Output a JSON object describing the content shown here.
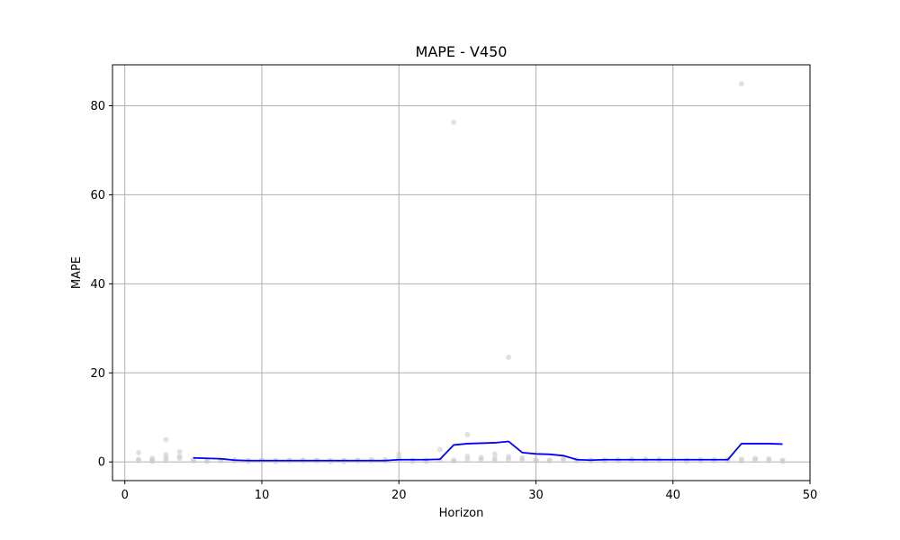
{
  "chart_data": {
    "type": "line",
    "title": "MAPE - V450",
    "xlabel": "Horizon",
    "ylabel": "MAPE",
    "xlim": [
      -0.9,
      50
    ],
    "ylim": [
      -4.2,
      89.2
    ],
    "xticks": [
      0,
      10,
      20,
      30,
      40,
      50
    ],
    "yticks": [
      0,
      20,
      40,
      60,
      80
    ],
    "grid": true,
    "colors": {
      "line": "#0000ff",
      "scatter": "#c8c8c8"
    },
    "series": [
      {
        "type": "line",
        "x": [
          5,
          6,
          7,
          8,
          9,
          10,
          11,
          12,
          13,
          14,
          15,
          16,
          17,
          18,
          19,
          20,
          21,
          22,
          23,
          24,
          25,
          26,
          27,
          28,
          29,
          30,
          31,
          32,
          33,
          34,
          35,
          36,
          37,
          38,
          39,
          40,
          41,
          42,
          43,
          44,
          45,
          46,
          47,
          48
        ],
        "y": [
          0.9,
          0.8,
          0.7,
          0.4,
          0.3,
          0.3,
          0.3,
          0.3,
          0.3,
          0.3,
          0.3,
          0.3,
          0.3,
          0.3,
          0.3,
          0.5,
          0.5,
          0.5,
          0.6,
          3.8,
          4.1,
          4.2,
          4.3,
          4.6,
          2.1,
          1.8,
          1.7,
          1.4,
          0.5,
          0.4,
          0.5,
          0.5,
          0.5,
          0.5,
          0.5,
          0.5,
          0.5,
          0.5,
          0.5,
          0.5,
          4.1,
          4.1,
          4.1,
          4.0
        ]
      },
      {
        "type": "scatter",
        "points": [
          [
            1,
            0.3
          ],
          [
            1,
            0.6
          ],
          [
            1,
            2.1
          ],
          [
            2,
            0.1
          ],
          [
            2,
            0.5
          ],
          [
            2,
            0.8
          ],
          [
            3,
            0.3
          ],
          [
            3,
            0.9
          ],
          [
            3,
            1.6
          ],
          [
            3,
            5.0
          ],
          [
            4,
            0.8
          ],
          [
            4,
            1.3
          ],
          [
            4,
            2.3
          ],
          [
            5,
            0.2
          ],
          [
            5,
            0.6
          ],
          [
            6,
            0.1
          ],
          [
            6,
            0.3
          ],
          [
            7,
            0.2
          ],
          [
            7,
            0.4
          ],
          [
            8,
            0.2
          ],
          [
            8,
            0.4
          ],
          [
            9,
            0.1
          ],
          [
            9,
            0.3
          ],
          [
            10,
            0.2
          ],
          [
            10,
            0.4
          ],
          [
            11,
            0.1
          ],
          [
            11,
            0.3
          ],
          [
            12,
            0.2
          ],
          [
            12,
            0.4
          ],
          [
            13,
            0.2
          ],
          [
            13,
            0.4
          ],
          [
            14,
            0.2
          ],
          [
            14,
            0.4
          ],
          [
            15,
            0.1
          ],
          [
            15,
            0.3
          ],
          [
            16,
            0.1
          ],
          [
            16,
            0.3
          ],
          [
            17,
            0.2
          ],
          [
            17,
            0.4
          ],
          [
            18,
            0.2
          ],
          [
            18,
            0.5
          ],
          [
            19,
            0.2
          ],
          [
            19,
            0.5
          ],
          [
            20,
            0.5
          ],
          [
            20,
            1.0
          ],
          [
            20,
            1.8
          ],
          [
            21,
            0.1
          ],
          [
            21,
            0.4
          ],
          [
            22,
            0.1
          ],
          [
            22,
            0.4
          ],
          [
            23,
            0.4
          ],
          [
            23,
            2.8
          ],
          [
            24,
            0.2
          ],
          [
            24,
            0.4
          ],
          [
            24,
            76.3
          ],
          [
            25,
            0.6
          ],
          [
            25,
            1.3
          ],
          [
            25,
            6.1
          ],
          [
            26,
            0.5
          ],
          [
            26,
            1.0
          ],
          [
            27,
            0.3
          ],
          [
            27,
            0.8
          ],
          [
            27,
            1.8
          ],
          [
            28,
            0.6
          ],
          [
            28,
            1.2
          ],
          [
            28,
            23.5
          ],
          [
            29,
            0.4
          ],
          [
            29,
            0.9
          ],
          [
            30,
            0.2
          ],
          [
            30,
            0.6
          ],
          [
            31,
            0.2
          ],
          [
            31,
            0.4
          ],
          [
            32,
            0.3
          ],
          [
            32,
            0.8
          ],
          [
            33,
            0.2
          ],
          [
            33,
            0.5
          ],
          [
            34,
            0.2
          ],
          [
            34,
            0.4
          ],
          [
            35,
            0.2
          ],
          [
            35,
            0.4
          ],
          [
            36,
            0.2
          ],
          [
            36,
            0.5
          ],
          [
            37,
            0.3
          ],
          [
            37,
            0.6
          ],
          [
            38,
            0.3
          ],
          [
            38,
            0.6
          ],
          [
            39,
            0.3
          ],
          [
            39,
            0.6
          ],
          [
            40,
            0.2
          ],
          [
            40,
            0.5
          ],
          [
            41,
            0.1
          ],
          [
            41,
            0.4
          ],
          [
            42,
            0.2
          ],
          [
            42,
            0.5
          ],
          [
            43,
            0.2
          ],
          [
            43,
            0.5
          ],
          [
            44,
            0.3
          ],
          [
            44,
            0.6
          ],
          [
            45,
            0.2
          ],
          [
            45,
            0.6
          ],
          [
            45,
            84.9
          ],
          [
            46,
            0.4
          ],
          [
            46,
            0.8
          ],
          [
            47,
            0.3
          ],
          [
            47,
            0.7
          ],
          [
            48,
            0.1
          ],
          [
            48,
            0.4
          ]
        ]
      }
    ]
  }
}
